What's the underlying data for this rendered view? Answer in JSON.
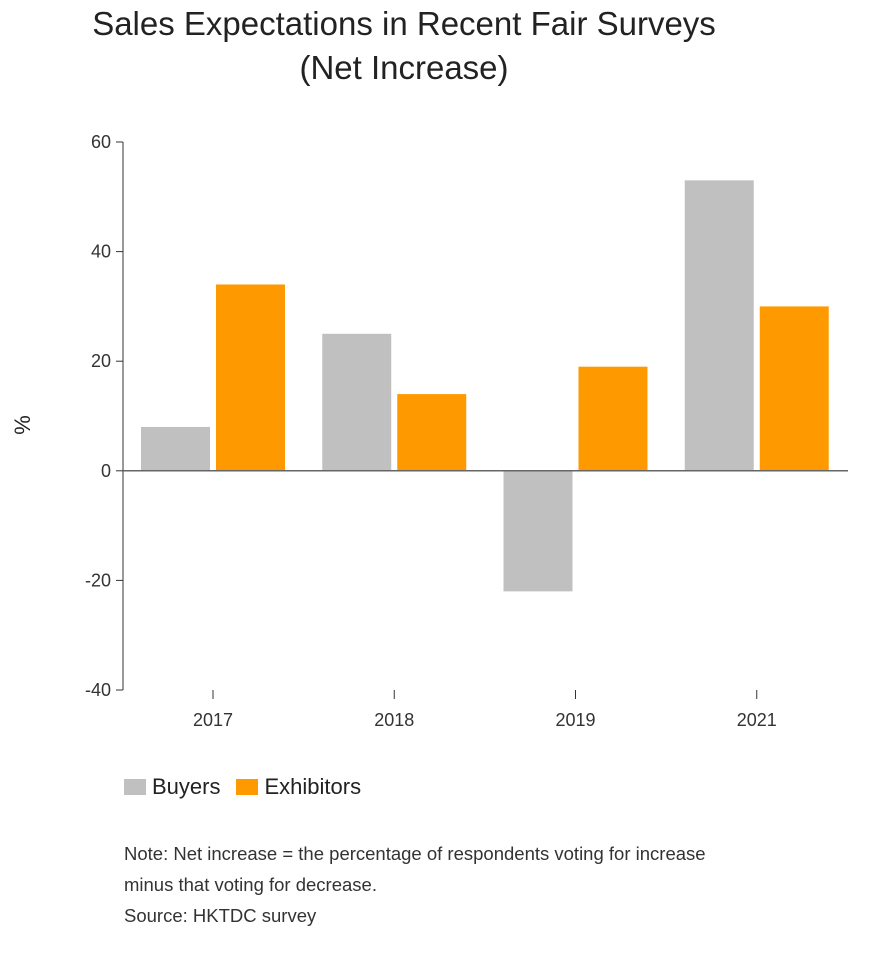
{
  "chart_data": {
    "type": "bar",
    "title_lines": [
      "Sales Expectations in Recent Fair Surveys",
      "(Net Increase)"
    ],
    "ylabel": "%",
    "xlabel": "",
    "categories": [
      "2017",
      "2018",
      "2019",
      "2021"
    ],
    "series": [
      {
        "name": "Buyers",
        "color": "#c0c0c0",
        "values": [
          8,
          25,
          -22,
          53
        ]
      },
      {
        "name": "Exhibitors",
        "color": "#ff9900",
        "values": [
          34,
          14,
          19,
          30
        ]
      }
    ],
    "ylim": [
      -40,
      60
    ],
    "yticks": [
      -40,
      -20,
      0,
      20,
      40,
      60
    ],
    "ytick_labels": [
      "-40",
      "-20",
      "0",
      "20",
      "40",
      "60"
    ],
    "grid": false,
    "legend_position": "bottom-left"
  },
  "notes": {
    "note_line1": "Note: Net increase = the percentage of respondents voting for increase",
    "note_line2": "minus that voting for decrease.",
    "source": "Source: HKTDC survey"
  }
}
